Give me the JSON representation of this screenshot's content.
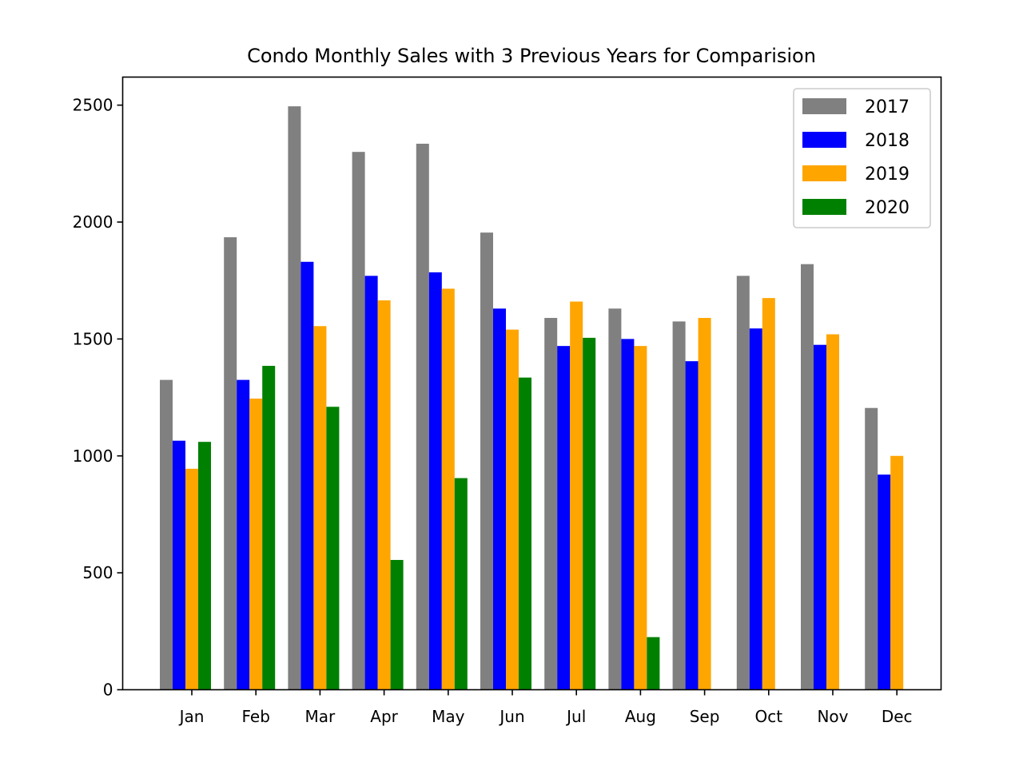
{
  "chart_data": {
    "type": "bar",
    "title": "Condo Monthly Sales with 3 Previous Years for Comparision",
    "xlabel": "",
    "ylabel": "",
    "categories": [
      "Jan",
      "Feb",
      "Mar",
      "Apr",
      "May",
      "Jun",
      "Jul",
      "Aug",
      "Sep",
      "Oct",
      "Nov",
      "Dec"
    ],
    "ylim": [
      0,
      2620
    ],
    "yticks": [
      0,
      500,
      1000,
      1500,
      2000,
      2500
    ],
    "grid": false,
    "legend_position": "top-right",
    "series": [
      {
        "name": "2017",
        "color": "#808080",
        "values": [
          1325,
          1935,
          2495,
          2300,
          2335,
          1955,
          1590,
          1630,
          1575,
          1770,
          1820,
          1205
        ]
      },
      {
        "name": "2018",
        "color": "#0000ff",
        "values": [
          1065,
          1325,
          1830,
          1770,
          1785,
          1630,
          1470,
          1500,
          1405,
          1545,
          1475,
          920
        ]
      },
      {
        "name": "2019",
        "color": "#ffa500",
        "values": [
          945,
          1245,
          1555,
          1665,
          1715,
          1540,
          1660,
          1470,
          1590,
          1675,
          1520,
          1000
        ]
      },
      {
        "name": "2020",
        "color": "#008000",
        "values": [
          1060,
          1385,
          1210,
          555,
          905,
          1335,
          1505,
          225,
          null,
          null,
          null,
          null
        ]
      }
    ]
  }
}
